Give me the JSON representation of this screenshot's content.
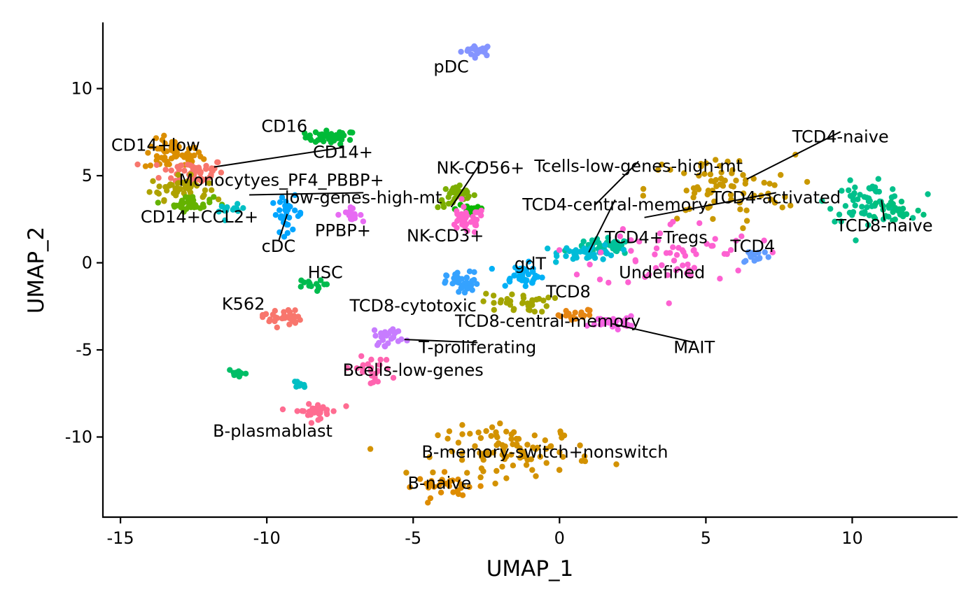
{
  "chart_data": {
    "type": "scatter",
    "xlabel": "UMAP_1",
    "ylabel": "UMAP_2",
    "xlim": [
      -15.6,
      13.6
    ],
    "ylim": [
      -14.6,
      13.8
    ],
    "x_ticks": [
      -15,
      -10,
      -5,
      0,
      5,
      10
    ],
    "x_tick_labels": [
      "-15",
      "-10",
      "-5",
      "0",
      "5",
      "10"
    ],
    "y_ticks": [
      -10,
      -5,
      0,
      5,
      10
    ],
    "y_tick_labels": [
      "-10",
      "-5",
      "0",
      "5",
      "10"
    ],
    "grid": false,
    "legend": "none",
    "clusters": [
      {
        "label": "pDC",
        "color": "#8494FF",
        "center": [
          -2.8,
          12.2
        ],
        "spread": [
          0.5,
          0.3
        ],
        "n": 22,
        "label_pos": [
          -3.7,
          11.2
        ],
        "leader_to": null
      },
      {
        "label": "CD16",
        "color": "#00BA38",
        "center": [
          -7.8,
          7.2
        ],
        "spread": [
          0.8,
          0.35
        ],
        "n": 40,
        "label_pos": [
          -9.4,
          7.8
        ],
        "leader_to": null
      },
      {
        "label": "CD14+low",
        "color": "#DB8E00",
        "center": [
          -13.2,
          6.2
        ],
        "spread": [
          0.9,
          0.8
        ],
        "n": 60,
        "label_pos": [
          -13.8,
          6.7
        ],
        "leader_to": null
      },
      {
        "label": "CD14+",
        "color": "#F8766D",
        "center": [
          -12.5,
          5.2
        ],
        "spread": [
          1.0,
          0.7
        ],
        "n": 55,
        "label_pos": [
          -7.4,
          6.3
        ],
        "leader_to": [
          -11.8,
          5.5
        ]
      },
      {
        "label": "Monocytyes_PF4_PBBP+",
        "color": "#AEA200",
        "center": [
          -13.0,
          4.3
        ],
        "spread": [
          0.9,
          0.6
        ],
        "n": 45,
        "label_pos": [
          -9.5,
          4.7
        ],
        "leader_to": null
      },
      {
        "label": "low-genes-high-mt",
        "color": "#64B200",
        "center": [
          -12.6,
          3.4
        ],
        "spread": [
          0.7,
          0.4
        ],
        "n": 35,
        "label_pos": [
          -6.7,
          3.7
        ],
        "leader_to": [
          -10.6,
          3.9
        ]
      },
      {
        "label": "CD14+CCL2+",
        "color": "#00BFC4",
        "center": [
          -11.2,
          3.0
        ],
        "spread": [
          0.4,
          0.3
        ],
        "n": 12,
        "label_pos": [
          -12.3,
          2.6
        ],
        "leader_to": null
      },
      {
        "label": "cDC",
        "color": "#00A5FF",
        "center": [
          -9.3,
          2.8
        ],
        "spread": [
          0.5,
          0.9
        ],
        "n": 30,
        "label_pos": [
          -9.6,
          0.9
        ],
        "leader_to": [
          -9.3,
          2.8
        ]
      },
      {
        "label": "PPBP+",
        "color": "#E76BF3",
        "center": [
          -7.2,
          2.8
        ],
        "spread": [
          0.4,
          0.3
        ],
        "n": 16,
        "label_pos": [
          -7.4,
          1.8
        ],
        "leader_to": null
      },
      {
        "label": "NK-CD56+",
        "color": "#7CAE00",
        "center": [
          -3.5,
          3.8
        ],
        "spread": [
          0.6,
          0.6
        ],
        "n": 30,
        "label_pos": [
          -2.7,
          5.4
        ],
        "leader_to": [
          -3.7,
          3.2
        ]
      },
      {
        "label": "Tcells-low-genes-high-mt",
        "color": "#0CB702",
        "center": [
          -3.0,
          3.1
        ],
        "spread": [
          0.5,
          0.5
        ],
        "n": 18,
        "label_pos": [
          2.7,
          5.5
        ],
        "leader_to": [
          1.2,
          3.3
        ]
      },
      {
        "label": "NK-CD3+",
        "color": "#FF61CC",
        "center": [
          -3.2,
          2.4
        ],
        "spread": [
          0.6,
          0.7
        ],
        "n": 35,
        "label_pos": [
          -3.9,
          1.5
        ],
        "leader_to": null
      },
      {
        "label": "TCD4-central-memory",
        "color": "#00C19A",
        "center": [
          1.5,
          0.9
        ],
        "spread": [
          0.9,
          0.4
        ],
        "n": 45,
        "label_pos": [
          1.9,
          3.3
        ],
        "leader_to": [
          1.0,
          0.6
        ]
      },
      {
        "label": "TCD4+Tregs",
        "color": "#00BCD8",
        "center": [
          1.0,
          0.6
        ],
        "spread": [
          0.9,
          0.4
        ],
        "n": 40,
        "label_pos": [
          3.3,
          1.4
        ],
        "leader_to": null
      },
      {
        "label": "TCD4-naive",
        "color": "#00C08B",
        "center": [
          10.5,
          3.5
        ],
        "spread": [
          1.2,
          1.0
        ],
        "n": 60,
        "label_pos": [
          9.6,
          7.2
        ],
        "leader_to": [
          6.4,
          4.8
        ]
      },
      {
        "label": "TCD4-activated",
        "color": "#C99800",
        "center": [
          5.5,
          4.2
        ],
        "spread": [
          2.3,
          1.8
        ],
        "n": 75,
        "label_pos": [
          7.4,
          3.7
        ],
        "leader_to": [
          2.9,
          2.6
        ]
      },
      {
        "label": "TCD8-naive",
        "color": "#00BF7D",
        "center": [
          11.5,
          3.0
        ],
        "spread": [
          0.8,
          0.7
        ],
        "n": 25,
        "label_pos": [
          11.1,
          2.1
        ],
        "leader_to": [
          11.0,
          3.6
        ]
      },
      {
        "label": "TCD4",
        "color": "#619CFF",
        "center": [
          6.7,
          0.4
        ],
        "spread": [
          0.5,
          0.4
        ],
        "n": 15,
        "label_pos": [
          6.6,
          0.9
        ],
        "leader_to": null
      },
      {
        "label": "Undefined",
        "color": "#FD61D1",
        "center": [
          4.0,
          0.5
        ],
        "spread": [
          2.5,
          1.8
        ],
        "n": 60,
        "label_pos": [
          3.5,
          -0.6
        ],
        "leader_to": null
      },
      {
        "label": "gdT",
        "color": "#00B0F6",
        "center": [
          -1.3,
          -0.7
        ],
        "spread": [
          0.7,
          0.6
        ],
        "n": 40,
        "label_pos": [
          -1.0,
          -0.1
        ],
        "leader_to": null
      },
      {
        "label": "HSC",
        "color": "#00BB4E",
        "center": [
          -8.6,
          -1.3
        ],
        "spread": [
          0.5,
          0.3
        ],
        "n": 14,
        "label_pos": [
          -8.0,
          -0.6
        ],
        "leader_to": null
      },
      {
        "label": "TCD8",
        "color": "#A3A500",
        "center": [
          -1.5,
          -2.3
        ],
        "spread": [
          1.1,
          0.5
        ],
        "n": 35,
        "label_pos": [
          0.3,
          -1.7
        ],
        "leader_to": null
      },
      {
        "label": "K562",
        "color": "#F8766D",
        "center": [
          -9.5,
          -3.1
        ],
        "spread": [
          0.6,
          0.5
        ],
        "n": 30,
        "label_pos": [
          -10.8,
          -2.4
        ],
        "leader_to": null
      },
      {
        "label": "TCD8-cytotoxic",
        "color": "#35A2FF",
        "center": [
          -3.3,
          -1.2
        ],
        "spread": [
          0.5,
          0.6
        ],
        "n": 40,
        "label_pos": [
          -5.0,
          -2.5
        ],
        "leader_to": null
      },
      {
        "label": "TCD8-central-memory",
        "color": "#E68613",
        "center": [
          0.6,
          -3.1
        ],
        "spread": [
          0.8,
          0.4
        ],
        "n": 20,
        "label_pos": [
          -0.4,
          -3.4
        ],
        "leader_to": null
      },
      {
        "label": "MAIT",
        "color": "#F564E3",
        "center": [
          1.8,
          -3.4
        ],
        "spread": [
          0.7,
          0.3
        ],
        "n": 30,
        "label_pos": [
          4.6,
          -4.9
        ],
        "leader_to": [
          1.8,
          -3.5
        ]
      },
      {
        "label": "T-proliferating",
        "color": "#C77CFF",
        "center": [
          -5.8,
          -4.2
        ],
        "spread": [
          0.5,
          0.5
        ],
        "n": 25,
        "label_pos": [
          -2.8,
          -4.9
        ],
        "leader_to": [
          -5.3,
          -4.4
        ]
      },
      {
        "label": "Bcells-low-genes",
        "color": "#FF64B0",
        "center": [
          -6.5,
          -6.2
        ],
        "spread": [
          0.7,
          0.7
        ],
        "n": 25,
        "label_pos": [
          -5.0,
          -6.2
        ],
        "leader_to": null
      },
      {
        "label": "B-plasmablast",
        "color": "#FF6C91",
        "center": [
          -8.3,
          -8.5
        ],
        "spread": [
          0.7,
          0.4
        ],
        "n": 30,
        "label_pos": [
          -9.8,
          -9.7
        ],
        "leader_to": null
      },
      {
        "label": "",
        "color": "#00BE67",
        "center": [
          -11.0,
          -6.4
        ],
        "spread": [
          0.3,
          0.2
        ],
        "n": 10,
        "label_pos": null,
        "leader_to": null
      },
      {
        "label": "",
        "color": "#00BFC4",
        "center": [
          -9.0,
          -7.0
        ],
        "spread": [
          0.3,
          0.2
        ],
        "n": 8,
        "label_pos": null,
        "leader_to": null
      },
      {
        "label": "B-memory-switch+nonswitch",
        "color": "#D39200",
        "center": [
          -1.5,
          -10.8
        ],
        "spread": [
          2.4,
          1.3
        ],
        "n": 95,
        "label_pos": [
          -0.5,
          -10.9
        ],
        "leader_to": null
      },
      {
        "label": "B-naive",
        "color": "#DE8C00",
        "center": [
          -3.8,
          -12.8
        ],
        "spread": [
          1.0,
          0.6
        ],
        "n": 30,
        "label_pos": [
          -4.1,
          -12.7
        ],
        "leader_to": null
      }
    ]
  }
}
